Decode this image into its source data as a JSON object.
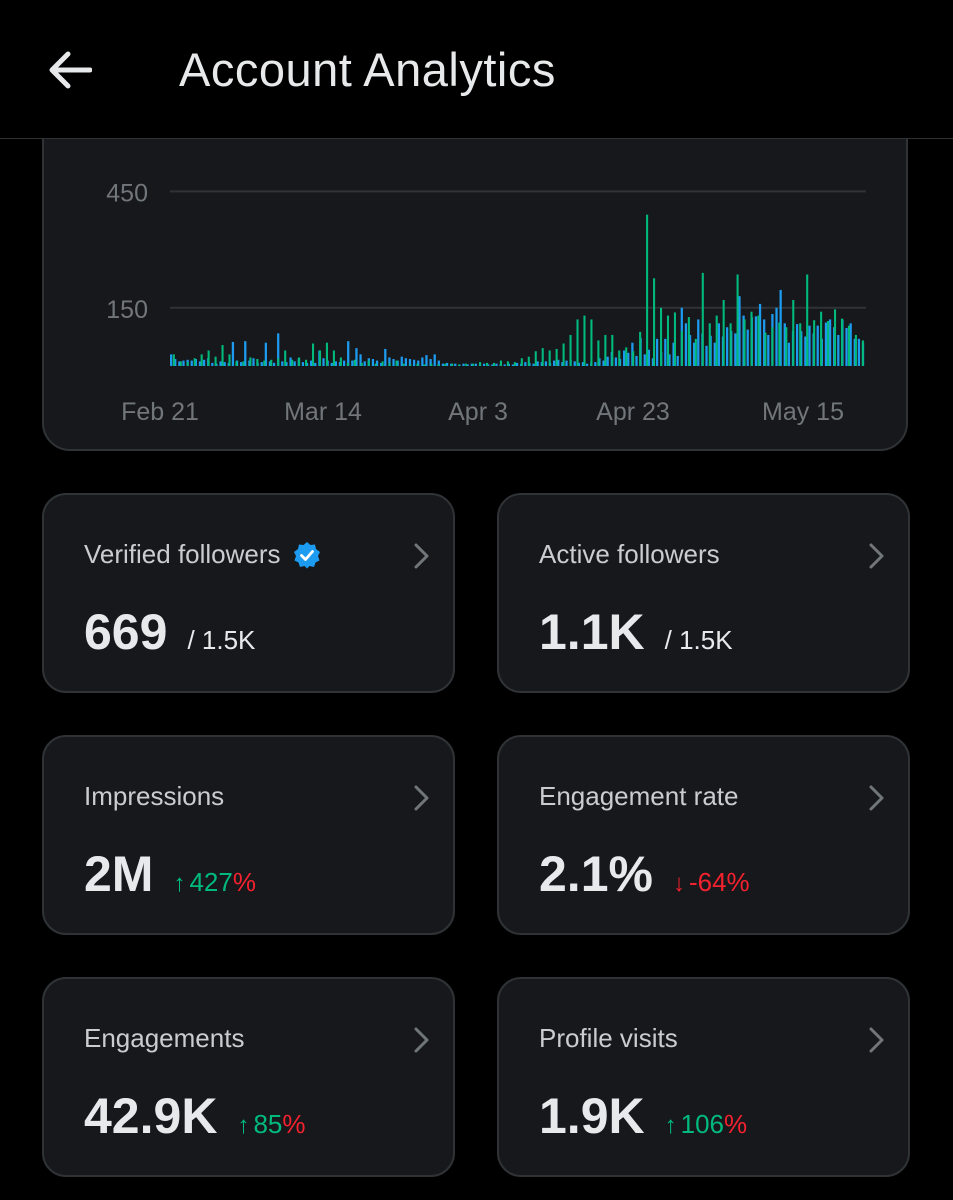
{
  "header": {
    "title": "Account Analytics",
    "back_icon": "arrow-left-icon"
  },
  "chart_data": {
    "type": "bar",
    "y_ticks": [
      "450",
      "150"
    ],
    "x_ticks": [
      "Feb 21",
      "Mar 14",
      "Apr 3",
      "Apr 23",
      "May 15"
    ],
    "ylim": [
      0,
      500
    ],
    "grid": true,
    "colors": {
      "series_a": "#1d9bf0",
      "series_b": "#00ba7c",
      "grid": "#2f3336",
      "tick": "#71767b"
    },
    "series": [
      {
        "values": [
          30,
          18,
          12,
          14,
          16,
          14,
          18,
          12,
          16,
          20,
          8,
          6,
          12,
          10,
          8,
          62,
          14,
          10,
          64,
          14,
          20,
          8,
          10,
          60,
          12,
          8,
          84,
          12,
          10,
          22,
          12,
          20,
          10,
          8,
          14,
          8,
          40,
          20,
          14,
          8,
          12,
          10,
          14,
          64,
          14,
          46,
          30,
          12,
          20,
          18,
          14,
          8,
          44,
          22,
          18,
          14,
          24,
          20,
          18,
          16,
          14,
          22,
          28,
          18,
          30,
          14,
          6,
          8,
          6,
          6,
          4,
          6,
          4,
          6,
          6,
          4,
          6,
          4,
          4,
          6,
          4,
          4,
          6,
          4,
          8,
          6,
          10,
          8,
          6,
          12,
          10,
          12,
          8,
          14,
          16,
          10,
          14,
          16,
          12,
          8,
          10,
          6,
          8,
          10,
          20,
          14,
          24,
          36,
          22,
          18,
          40,
          34,
          60,
          26,
          72,
          30,
          42,
          20,
          70,
          36,
          70,
          30,
          60,
          26,
          150,
          110,
          80,
          60,
          120,
          84,
          52,
          78,
          60,
          110,
          76,
          100,
          90,
          84,
          180,
          130,
          94,
          126,
          128,
          160,
          120,
          80,
          134,
          150,
          196,
          110,
          60,
          90,
          108,
          90,
          76,
          104,
          84,
          104,
          70,
          112,
          120,
          100,
          80,
          120,
          98,
          110,
          70,
          70,
          60
        ]
      },
      {
        "spikes": [
          30,
          12,
          10,
          20,
          30,
          40,
          24,
          54,
          30,
          12,
          12,
          22,
          18,
          14,
          16,
          20,
          40,
          16,
          22,
          16,
          58,
          40,
          60,
          40,
          22,
          8,
          16,
          8,
          14,
          6,
          12,
          8,
          14,
          6,
          4,
          6,
          4,
          6,
          4,
          6,
          6,
          4,
          6,
          6,
          10,
          8,
          8,
          14,
          12,
          10,
          20,
          24,
          38,
          46,
          40,
          44,
          58,
          80,
          120,
          130,
          120,
          66,
          80,
          80,
          40,
          48,
          38,
          88,
          390,
          226,
          150,
          130,
          138,
          90,
          126,
          70,
          240,
          110,
          130,
          170,
          110,
          236,
          120,
          140,
          130,
          86,
          100,
          112,
          100,
          170,
          110,
          236,
          118,
          140,
          116,
          146,
          122,
          104,
          80,
          66
        ]
      }
    ]
  },
  "cards": [
    {
      "label": "Verified followers",
      "value": "669",
      "sub": "/ 1.5K",
      "icon": "verified-badge-icon"
    },
    {
      "label": "Active followers",
      "value": "1.1K",
      "sub": "/ 1.5K"
    },
    {
      "label": "Impressions",
      "value": "2M",
      "delta_arrow": "↑",
      "delta_num": "427",
      "delta_pct": "%",
      "direction": "up"
    },
    {
      "label": "Engagement rate",
      "value": "2.1%",
      "delta_arrow": "↓",
      "delta_num": "-64",
      "delta_pct": "%",
      "direction": "down"
    },
    {
      "label": "Engagements",
      "value": "42.9K",
      "delta_arrow": "↑",
      "delta_num": "85",
      "delta_pct": "%",
      "direction": "up"
    },
    {
      "label": "Profile visits",
      "value": "1.9K",
      "delta_arrow": "↑",
      "delta_num": "106",
      "delta_pct": "%",
      "direction": "up"
    }
  ]
}
